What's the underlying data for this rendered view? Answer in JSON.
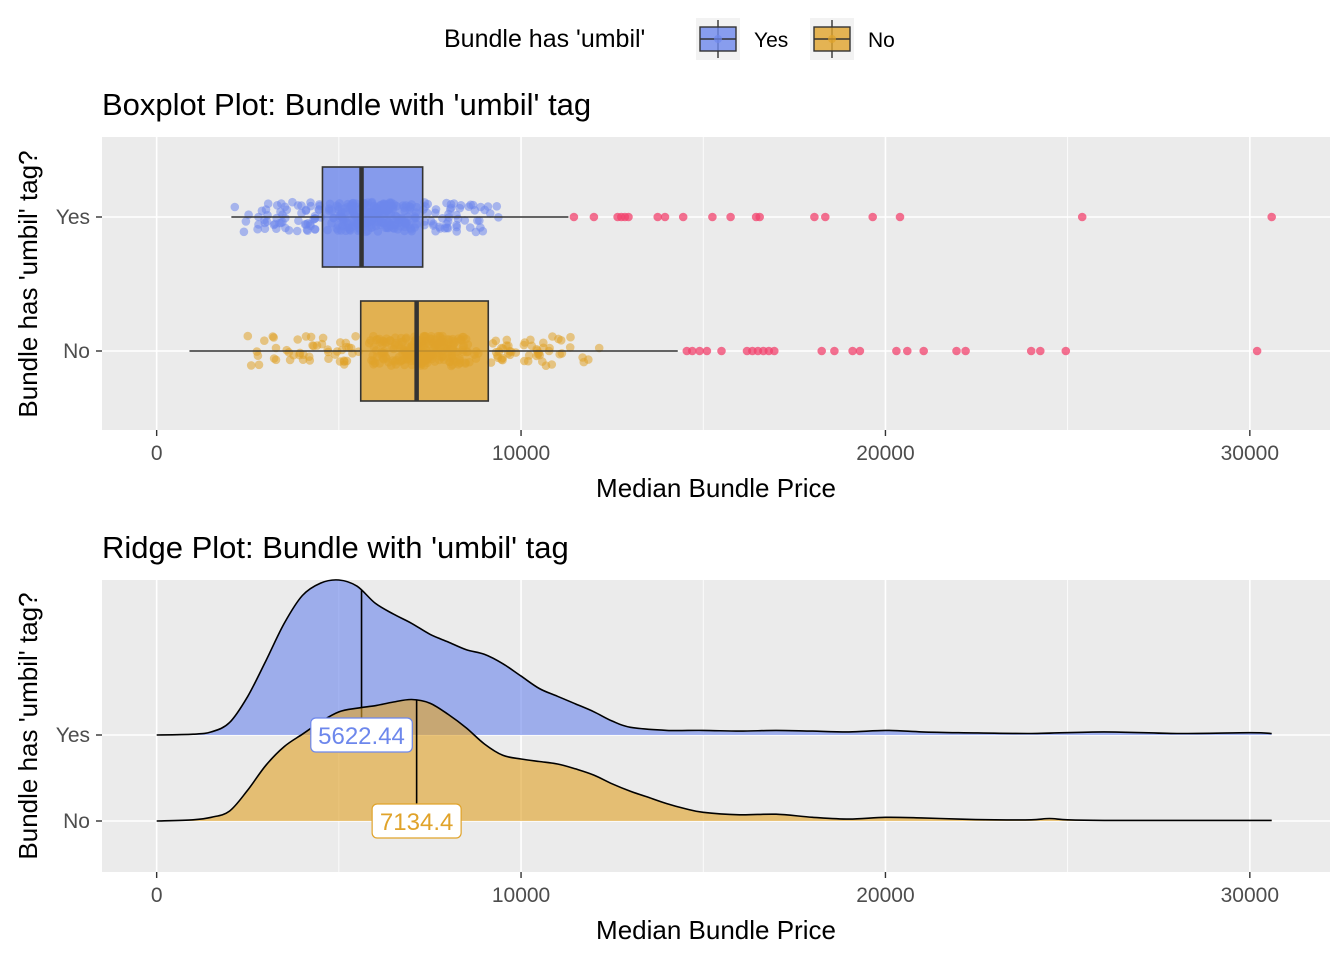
{
  "legend": {
    "title": "Bundle has 'umbil'",
    "items": [
      {
        "label": "Yes",
        "color": "#6d87ec"
      },
      {
        "label": "No",
        "color": "#e0a32a"
      }
    ]
  },
  "chart_data": [
    {
      "type": "boxplot",
      "title": "Boxplot Plot: Bundle with 'umbil' tag",
      "xlabel": "Median Bundle Price",
      "ylabel": "Bundle has 'umbil' tag?",
      "xlim": [
        -1500,
        32200
      ],
      "xticks": [
        0,
        10000,
        20000,
        30000
      ],
      "xtick_labels": [
        "0",
        "10000",
        "20000",
        "30000"
      ],
      "categories": [
        "Yes",
        "No"
      ],
      "grid": true,
      "series": [
        {
          "name": "Yes",
          "color": "#6d87ec",
          "whisker_low": 2050,
          "q1": 4550,
          "median": 5622.44,
          "q3": 7300,
          "whisker_high": 11300,
          "jitter_range": [
            1950,
            9850
          ],
          "outliers": [
            11450,
            12000,
            12650,
            12750,
            12850,
            12950,
            13750,
            13950,
            14450,
            15250,
            15750,
            16450,
            16550,
            18050,
            18350,
            19650,
            20400,
            25400,
            30600
          ]
        },
        {
          "name": "No",
          "color": "#e0a32a",
          "whisker_low": 900,
          "q1": 5600,
          "median": 7134.4,
          "q3": 9100,
          "whisker_high": 14300,
          "jitter_range": [
            1850,
            12250
          ],
          "outliers": [
            14550,
            14700,
            14900,
            15100,
            15500,
            16200,
            16350,
            16500,
            16650,
            16800,
            16950,
            18250,
            18600,
            19100,
            19300,
            20300,
            20600,
            21050,
            21950,
            22200,
            24000,
            24250,
            24950,
            30200
          ]
        }
      ]
    },
    {
      "type": "ridgeline",
      "title": "Ridge Plot: Bundle with 'umbil' tag",
      "xlabel": "Median Bundle Price",
      "ylabel": "Bundle has 'umbil' tag?",
      "xlim": [
        -1500,
        32200
      ],
      "xticks": [
        0,
        10000,
        20000,
        30000
      ],
      "xtick_labels": [
        "0",
        "10000",
        "20000",
        "30000"
      ],
      "categories": [
        "Yes",
        "No"
      ],
      "grid": true,
      "series": [
        {
          "name": "Yes",
          "color": "#6d87ec",
          "median": 5622.44,
          "median_label": "5622.44",
          "x": [
            0,
            1000,
            1500,
            2000,
            2500,
            3000,
            3500,
            4000,
            4500,
            5000,
            5500,
            6000,
            6500,
            7000,
            7500,
            8000,
            8500,
            9000,
            9500,
            10000,
            10500,
            11000,
            11500,
            12000,
            12500,
            13000,
            14000,
            15000,
            16000,
            17000,
            18000,
            19000,
            20000,
            21000,
            22000,
            24000,
            26000,
            28000,
            30000,
            30600
          ],
          "density": [
            0,
            0.005,
            0.02,
            0.08,
            0.25,
            0.48,
            0.72,
            0.9,
            0.98,
            1.0,
            0.96,
            0.85,
            0.78,
            0.72,
            0.65,
            0.6,
            0.55,
            0.52,
            0.46,
            0.38,
            0.3,
            0.25,
            0.2,
            0.15,
            0.09,
            0.05,
            0.03,
            0.03,
            0.025,
            0.03,
            0.025,
            0.02,
            0.03,
            0.02,
            0.015,
            0.01,
            0.02,
            0.01,
            0.015,
            0.01
          ]
        },
        {
          "name": "No",
          "color": "#e0a32a",
          "median": 7134.4,
          "median_label": "7134.4",
          "x": [
            0,
            1000,
            1500,
            2000,
            2500,
            3000,
            3500,
            4000,
            4500,
            5000,
            5500,
            6000,
            6500,
            7000,
            7500,
            8000,
            8500,
            9000,
            9500,
            10000,
            10500,
            11000,
            11500,
            12000,
            12500,
            13000,
            13500,
            14000,
            14500,
            15000,
            16000,
            17000,
            18000,
            19000,
            20000,
            21000,
            22000,
            23000,
            24000,
            24500,
            25000,
            26000,
            28000,
            30000,
            30600
          ],
          "density": [
            0,
            0.01,
            0.03,
            0.08,
            0.25,
            0.45,
            0.6,
            0.7,
            0.8,
            0.88,
            0.91,
            0.93,
            0.96,
            0.98,
            0.95,
            0.86,
            0.75,
            0.62,
            0.53,
            0.5,
            0.48,
            0.46,
            0.42,
            0.37,
            0.3,
            0.24,
            0.19,
            0.14,
            0.1,
            0.07,
            0.05,
            0.055,
            0.03,
            0.015,
            0.03,
            0.025,
            0.015,
            0.01,
            0.01,
            0.02,
            0.01,
            0.005,
            0.005,
            0.005,
            0.005
          ]
        }
      ]
    }
  ]
}
